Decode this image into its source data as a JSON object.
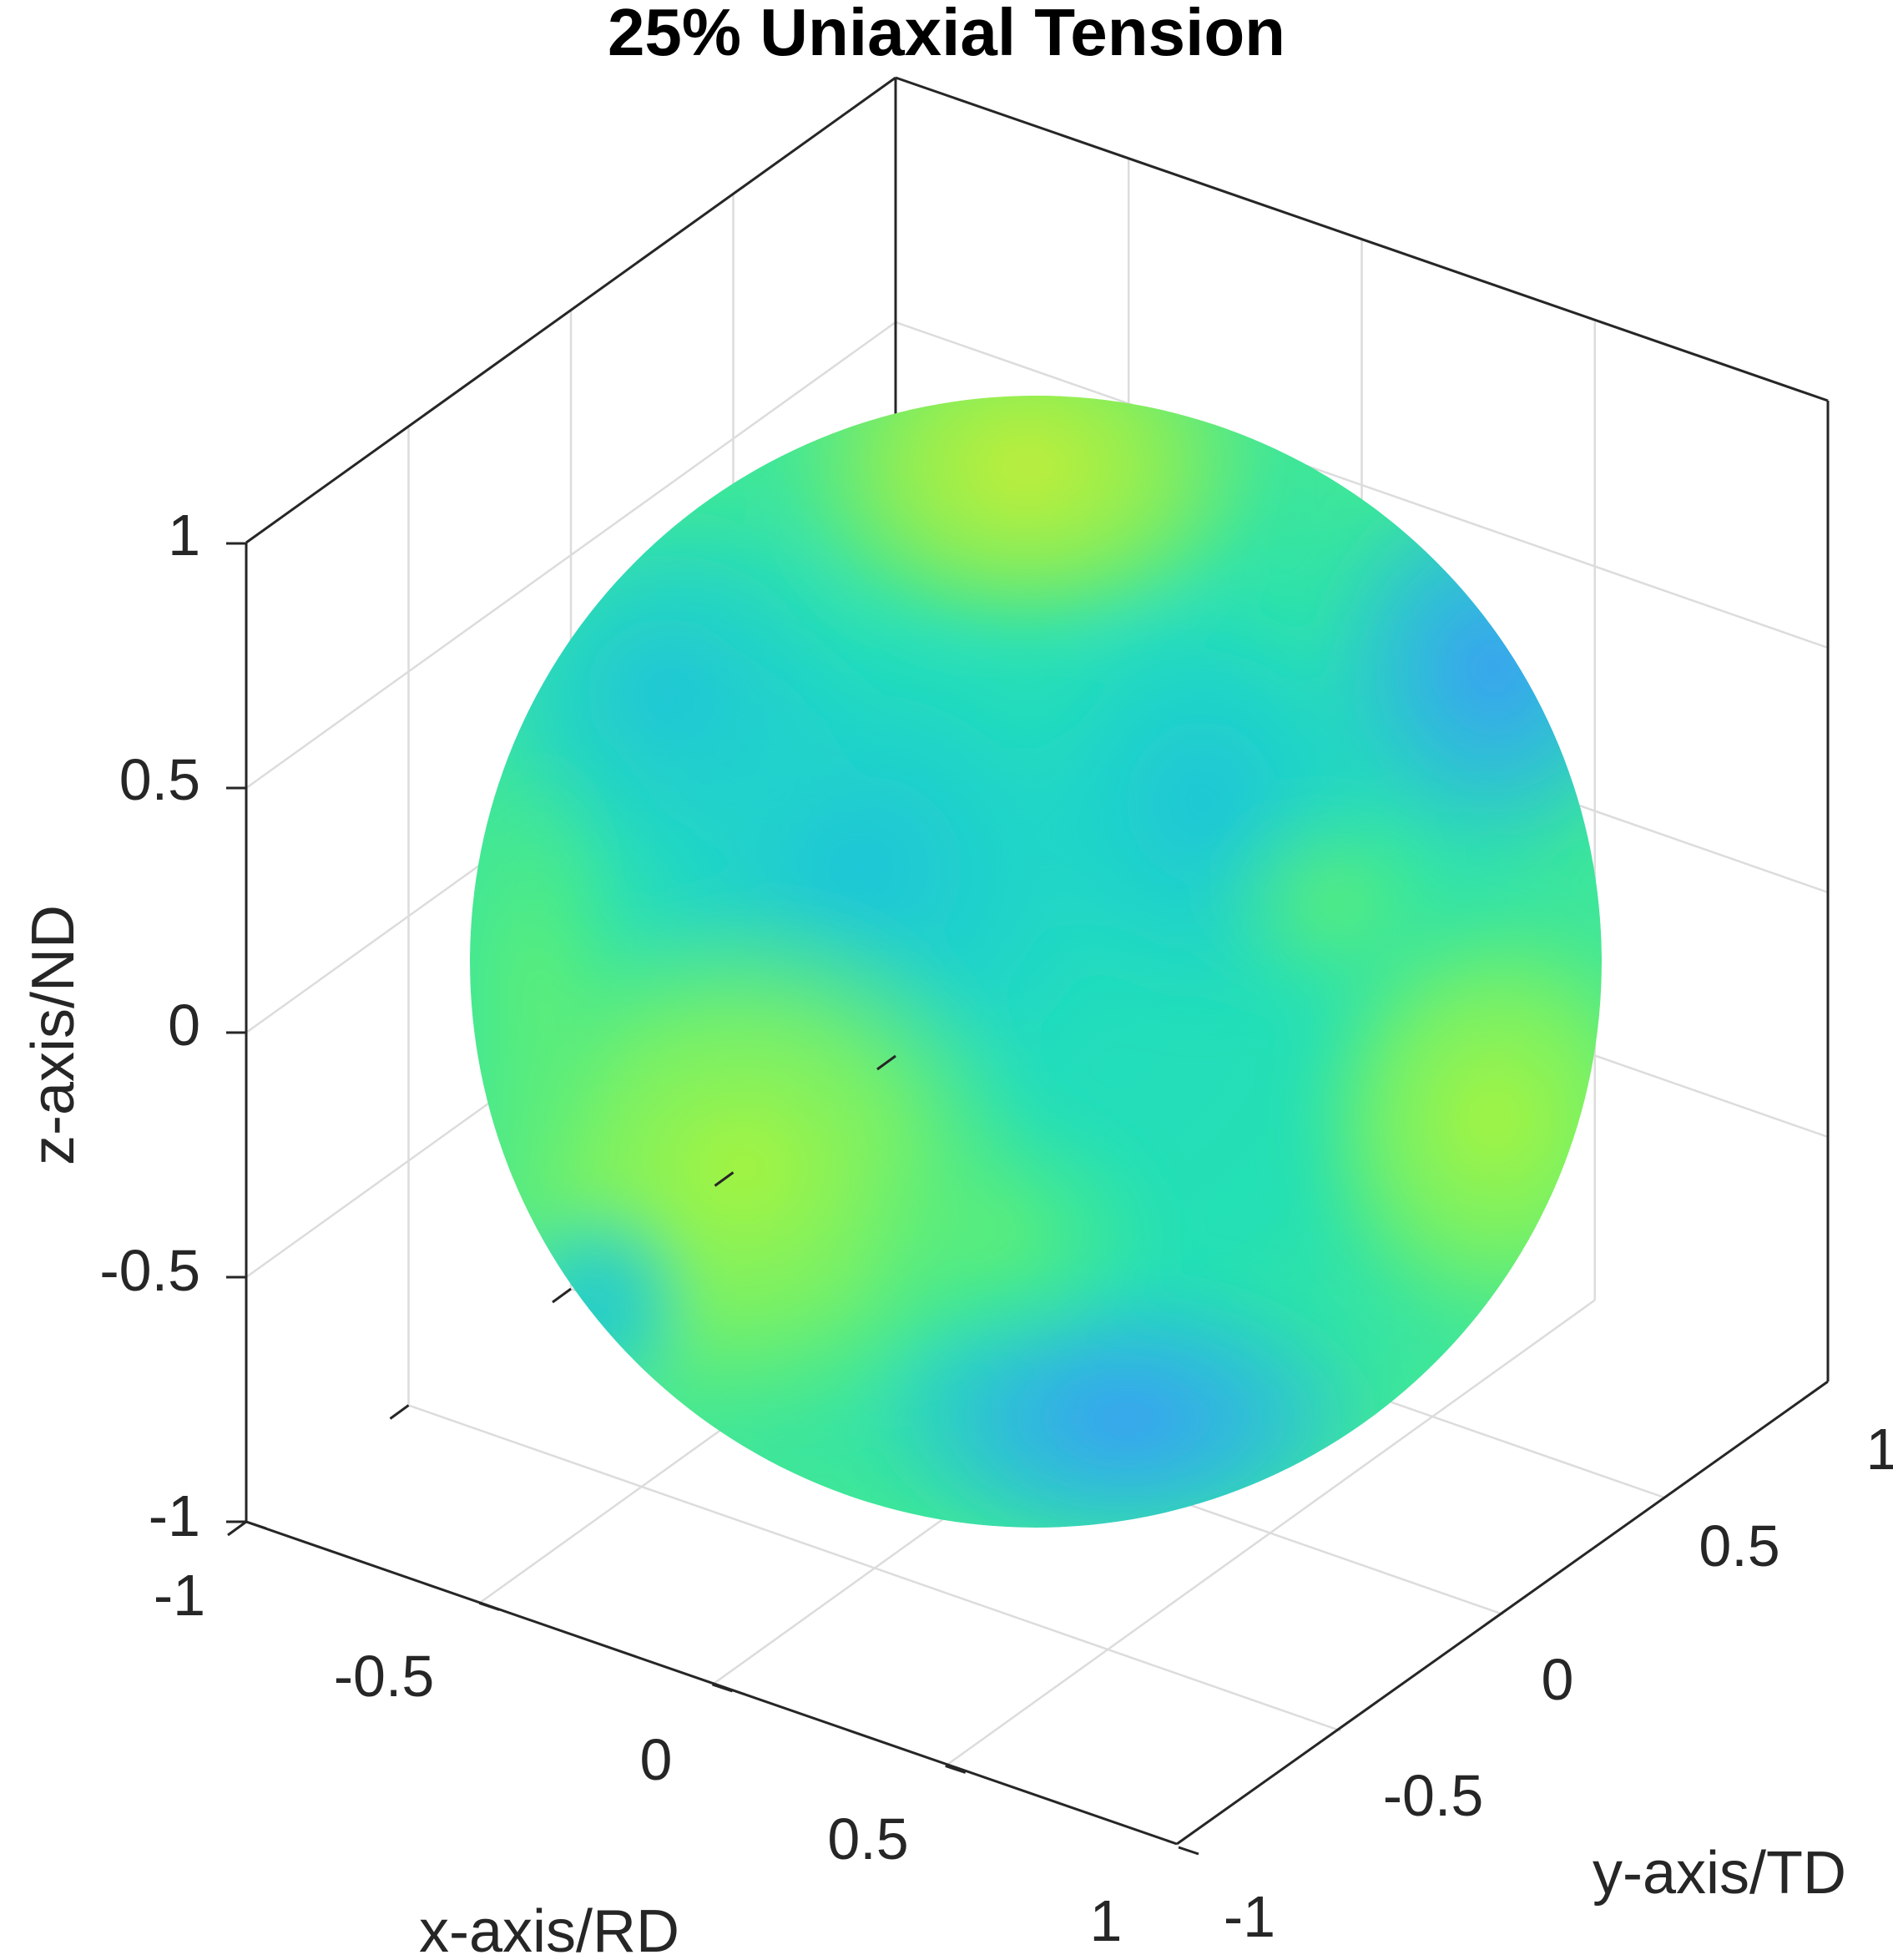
{
  "chart_data": {
    "type": "surface",
    "title": "25% Uniaxial Tension",
    "xlabel": "x-axis/RD",
    "ylabel": "y-axis/TD",
    "zlabel": "z-axis/ND",
    "xlim": [
      -1,
      1
    ],
    "ylim": [
      -1,
      1
    ],
    "zlim": [
      -1,
      1
    ],
    "x_ticks": [
      "-1",
      "-0.5",
      "0",
      "0.5",
      "1"
    ],
    "y_ticks": [
      "-1",
      "-0.5",
      "0",
      "0.5",
      "1"
    ],
    "z_ticks": [
      "-1",
      "-0.5",
      "0",
      "0.5",
      "1"
    ],
    "grid": true,
    "surface": "unit sphere",
    "colormap": "parula",
    "colors": {
      "blue": "#3aa0f5",
      "cyan": "#1dc3d9",
      "teal": "#1ddcbf",
      "green": "#5af07a",
      "lime": "#a8f53d",
      "yellow_green": "#c6ee38"
    }
  }
}
